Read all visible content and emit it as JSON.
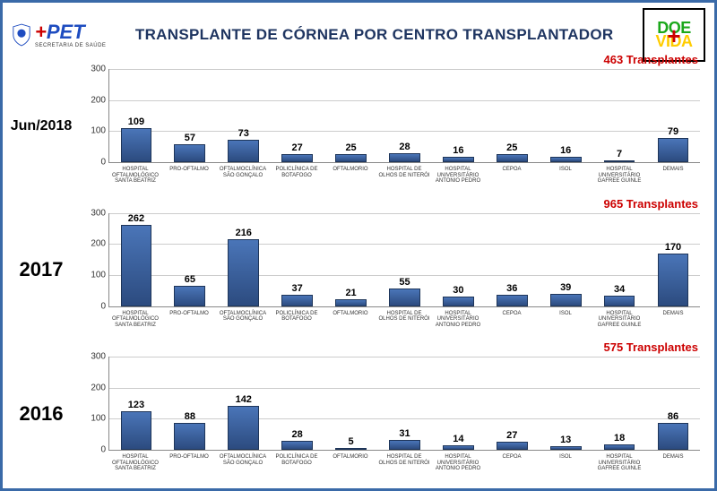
{
  "title": "TRANSPLANTE DE CÓRNEA POR CENTRO TRANSPLANTADOR",
  "logo_left": {
    "brand": "PET",
    "plus": "+",
    "sub": "SECRETARIA DE SAÚDE"
  },
  "logo_right": {
    "top": "DOE",
    "plus": "+",
    "bottom": "VIDA"
  },
  "colors": {
    "bar_gradient_top": "#4a75b8",
    "bar_gradient_bottom": "#2c4b7f",
    "bar_border": "#1e3559",
    "grid": "#cccccc",
    "axis": "#888888",
    "title": "#1f3561",
    "total": "#cc0000",
    "frame": "#3a6aa8"
  },
  "categories": [
    "HOSPITAL OFTALMOLÓGICO SANTA BEATRIZ",
    "PRO-OFTALMO",
    "OFTALMOCLÍNICA SÃO GONÇALO",
    "POLICLÍNICA DE BOTAFOGO",
    "OFTALMORIO",
    "HOSPITAL DE OLHOS DE NITERÓI",
    "HOSPITAL UNIVERSITÁRIO ANTONIO PEDRO",
    "CEPOA",
    "ISOL",
    "HOSPITAL UNIVERSITÁRIO GAFREE GUINLE",
    "DEMAIS"
  ],
  "charts": [
    {
      "period": "Jun/2018",
      "period_size": "small",
      "total_label": "463 Transplantes",
      "ymax": 300,
      "ytick_step": 100,
      "values": [
        109,
        57,
        73,
        27,
        25,
        28,
        16,
        25,
        16,
        7,
        79
      ]
    },
    {
      "period": "2017",
      "period_size": "big",
      "total_label": "965 Transplantes",
      "ymax": 300,
      "ytick_step": 100,
      "values": [
        262,
        65,
        216,
        37,
        21,
        55,
        30,
        36,
        39,
        34,
        170
      ]
    },
    {
      "period": "2016",
      "period_size": "big",
      "total_label": "575 Transplantes",
      "ymax": 300,
      "ytick_step": 100,
      "values": [
        123,
        88,
        142,
        28,
        5,
        31,
        14,
        27,
        13,
        18,
        86
      ]
    }
  ]
}
